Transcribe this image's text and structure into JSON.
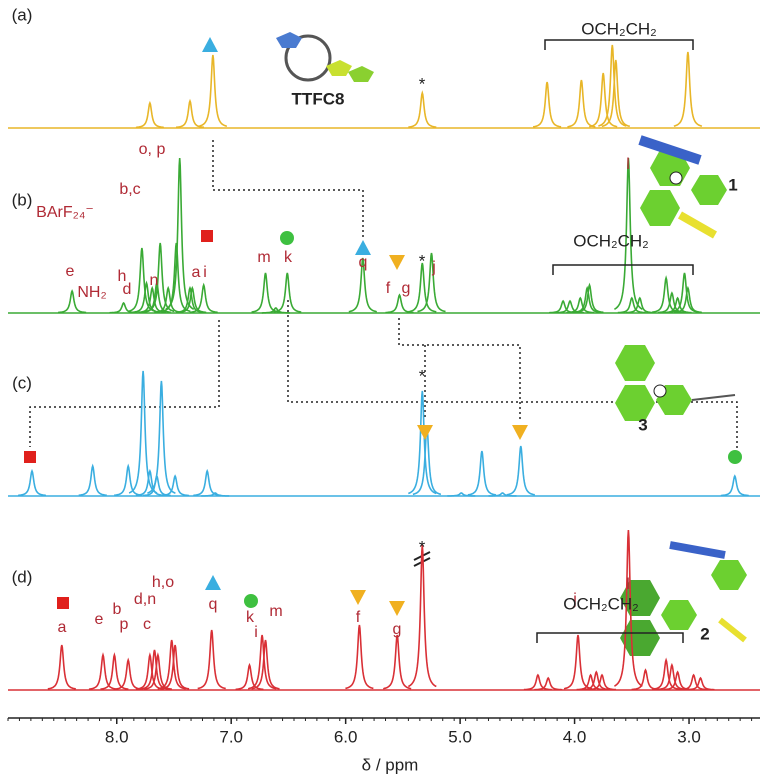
{
  "chart_data": {
    "type": "nmr",
    "xlabel": "δ / ppm",
    "xlim": [
      8.95,
      2.38
    ],
    "xticks": [
      {
        "value": 8,
        "label": "8.0"
      },
      {
        "value": 7,
        "label": "7.0"
      },
      {
        "value": 6,
        "label": "6.0"
      },
      {
        "value": 5,
        "label": "5.0"
      },
      {
        "value": 4,
        "label": "4.0"
      },
      {
        "value": 3,
        "label": "3.0"
      }
    ],
    "series": [
      {
        "name": "(a)",
        "color": "#e8b628",
        "x": [
          7.71,
          7.36,
          7.16,
          5.33,
          4.24,
          3.94,
          3.75,
          3.67,
          3.64,
          3.01
        ],
        "values": [
          25,
          27,
          73,
          35,
          46,
          48,
          55,
          83,
          68,
          76
        ],
        "annotations": [
          "*",
          "OCH₂CH₂",
          "TTFC8"
        ]
      },
      {
        "name": "(b)",
        "color": "#3aaa35",
        "x": [
          8.39,
          7.94,
          7.78,
          7.74,
          7.69,
          7.65,
          7.62,
          7.55,
          7.48,
          7.45,
          7.36,
          7.34,
          7.24,
          6.7,
          6.61,
          6.51,
          5.85,
          5.53,
          5.33,
          5.25,
          4.1,
          4.04,
          3.95,
          3.89,
          3.87,
          3.53,
          3.5,
          3.43,
          3.2,
          3.15,
          3.1,
          3.04,
          3.01
        ],
        "values": [
          22,
          10,
          65,
          30,
          25,
          30,
          70,
          25,
          70,
          155,
          25,
          25,
          28,
          40,
          5,
          40,
          55,
          18,
          50,
          60,
          12,
          12,
          15,
          25,
          28,
          155,
          15,
          15,
          35,
          20,
          15,
          40,
          25
        ],
        "annotations": [
          "e",
          "NH₂",
          "BArF₂₄⁻",
          "b,c",
          "o, p",
          "h",
          "d",
          "n",
          "a",
          "i",
          "m",
          "k",
          "q",
          "f",
          "g",
          "*",
          "j",
          "l",
          "OCH₂CH₂",
          "1"
        ]
      },
      {
        "name": "(c)",
        "color": "#3aaee0",
        "x": [
          8.74,
          8.21,
          7.9,
          7.77,
          7.71,
          7.65,
          7.61,
          7.49,
          7.21,
          7.14,
          5.33,
          5.29,
          4.99,
          4.81,
          4.63,
          4.47,
          2.6
        ],
        "values": [
          25,
          30,
          30,
          125,
          25,
          20,
          115,
          20,
          25,
          3,
          105,
          70,
          3,
          45,
          3,
          50,
          20
        ],
        "annotations": [
          "*",
          "3"
        ]
      },
      {
        "name": "(d)",
        "color": "#d93036",
        "x": [
          8.48,
          8.12,
          8.02,
          7.9,
          7.71,
          7.67,
          7.64,
          7.52,
          7.49,
          7.17,
          6.84,
          6.73,
          6.7,
          5.88,
          5.55,
          5.33,
          4.32,
          4.23,
          3.97,
          3.86,
          3.81,
          3.76,
          3.53,
          3.38,
          3.2,
          3.15,
          3.1,
          2.96,
          2.9
        ],
        "values": [
          45,
          35,
          35,
          30,
          35,
          40,
          35,
          50,
          45,
          60,
          25,
          55,
          50,
          65,
          55,
          145,
          15,
          12,
          55,
          15,
          18,
          15,
          160,
          20,
          30,
          25,
          18,
          15,
          12
        ],
        "annotations": [
          "a",
          "e",
          "b",
          "p",
          "c",
          "d,n",
          "h,o",
          "q",
          "k",
          "i",
          "m",
          "f",
          "g",
          "*",
          "j",
          "l",
          "OCH₂CH₂",
          "2"
        ]
      }
    ]
  }
}
